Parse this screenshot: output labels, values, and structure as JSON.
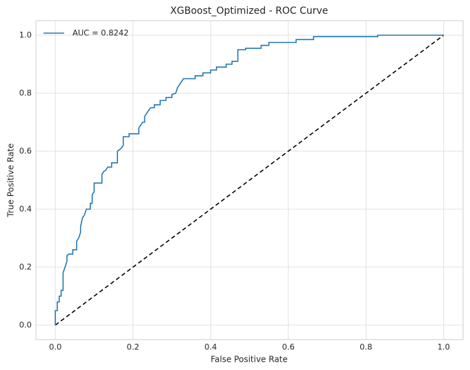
{
  "chart_data": {
    "type": "line",
    "title": "XGBoost_Optimized - ROC Curve",
    "x_label": "False Positive Rate",
    "y_label": "True Positive Rate",
    "xlim": [
      -0.05,
      1.05
    ],
    "ylim": [
      -0.05,
      1.05
    ],
    "xticks": [
      {
        "value": 0,
        "label": "0.0"
      },
      0.2,
      0.4,
      0.6,
      0.8,
      {
        "value": 1,
        "label": "1.0"
      }
    ],
    "yticks": [
      {
        "value": 0,
        "label": "0.0"
      },
      0.2,
      0.4,
      0.6,
      0.8,
      {
        "value": 1,
        "label": "1.0"
      }
    ],
    "grid": true,
    "legend": "upper left",
    "series": [
      {
        "name": "AUC = 0.8242",
        "color": "#1f77b4",
        "x": [
          0,
          0,
          0.005,
          0.005,
          0.01,
          0.01,
          0.015,
          0.015,
          0.02,
          0.02,
          0.025,
          0.03,
          0.03,
          0.035,
          0.045,
          0.045,
          0.055,
          0.055,
          0.06,
          0.065,
          0.065,
          0.07,
          0.075,
          0.08,
          0.09,
          0.09,
          0.095,
          0.095,
          0.1,
          0.1,
          0.12,
          0.12,
          0.125,
          0.13,
          0.135,
          0.145,
          0.145,
          0.16,
          0.16,
          0.17,
          0.175,
          0.175,
          0.19,
          0.19,
          0.215,
          0.215,
          0.22,
          0.225,
          0.23,
          0.23,
          0.24,
          0.245,
          0.255,
          0.255,
          0.27,
          0.27,
          0.285,
          0.285,
          0.3,
          0.3,
          0.31,
          0.315,
          0.32,
          0.325,
          0.33,
          0.36,
          0.36,
          0.38,
          0.38,
          0.4,
          0.4,
          0.415,
          0.415,
          0.44,
          0.44,
          0.455,
          0.455,
          0.47,
          0.47,
          0.49,
          0.49,
          0.53,
          0.53,
          0.55,
          0.55,
          0.62,
          0.62,
          0.665,
          0.665,
          0.83,
          0.83,
          1
        ],
        "y": [
          0,
          0.05,
          0.05,
          0.08,
          0.08,
          0.1,
          0.1,
          0.12,
          0.12,
          0.18,
          0.2,
          0.22,
          0.24,
          0.245,
          0.245,
          0.26,
          0.26,
          0.29,
          0.3,
          0.32,
          0.34,
          0.37,
          0.38,
          0.4,
          0.4,
          0.42,
          0.42,
          0.45,
          0.46,
          0.49,
          0.49,
          0.52,
          0.53,
          0.535,
          0.545,
          0.545,
          0.56,
          0.56,
          0.6,
          0.61,
          0.62,
          0.65,
          0.65,
          0.66,
          0.66,
          0.68,
          0.69,
          0.7,
          0.7,
          0.72,
          0.74,
          0.75,
          0.75,
          0.76,
          0.76,
          0.775,
          0.775,
          0.785,
          0.785,
          0.795,
          0.8,
          0.82,
          0.83,
          0.84,
          0.85,
          0.85,
          0.86,
          0.86,
          0.87,
          0.87,
          0.88,
          0.88,
          0.89,
          0.89,
          0.9,
          0.9,
          0.91,
          0.91,
          0.95,
          0.95,
          0.955,
          0.955,
          0.965,
          0.965,
          0.975,
          0.975,
          0.985,
          0.985,
          0.995,
          0.995,
          1,
          1
        ]
      }
    ],
    "reference_line": {
      "x": [
        0,
        1
      ],
      "y": [
        0,
        1
      ],
      "color": "#000000",
      "dashed": true
    }
  }
}
